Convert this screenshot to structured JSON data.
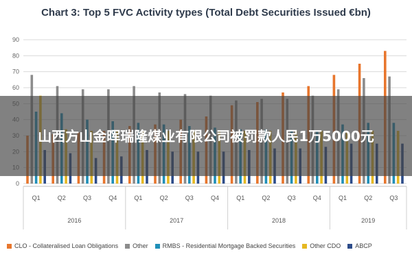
{
  "page": {
    "banner_text": "山西方山金晖瑞隆煤业有限公司被罚款人民1万5000元"
  },
  "chart_data": {
    "type": "bar",
    "title": "Chart 3: Top 5 FVC Activity types (Total Debt Securities Issued €bn)",
    "xlabel": "",
    "ylabel": "",
    "ylim": [
      0,
      90
    ],
    "yticks": [
      0,
      10,
      20,
      30,
      40,
      50,
      60,
      70,
      80,
      90
    ],
    "grid": true,
    "legend_position": "bottom",
    "categories": [
      "Q1",
      "Q2",
      "Q3",
      "Q4",
      "Q1",
      "Q2",
      "Q3",
      "Q4",
      "Q1",
      "Q2",
      "Q3",
      "Q4",
      "Q1",
      "Q2",
      "Q3"
    ],
    "groups": [
      {
        "label": "2016",
        "count": 4
      },
      {
        "label": "2017",
        "count": 4
      },
      {
        "label": "2018",
        "count": 4
      },
      {
        "label": "2019",
        "count": 3
      }
    ],
    "series": [
      {
        "name": "CLO - Collateralised Loan Obligations",
        "color": "#e8762d",
        "values": [
          30,
          31,
          32,
          33,
          36,
          37,
          40,
          42,
          49,
          51,
          57,
          61,
          68,
          75,
          83
        ]
      },
      {
        "name": "Other",
        "color": "#8c8c8c",
        "values": [
          68,
          61,
          59,
          59,
          61,
          57,
          56,
          55,
          52,
          53,
          53,
          55,
          59,
          66,
          67
        ]
      },
      {
        "name": "RMBS - Residential Mortgage Backed Securities",
        "color": "#1f8fb8",
        "values": [
          45,
          44,
          40,
          39,
          38,
          37,
          36,
          35,
          34,
          34,
          33,
          33,
          37,
          38,
          38
        ]
      },
      {
        "name": "Other CDO",
        "color": "#e6b822",
        "values": [
          55,
          34,
          33,
          33,
          33,
          33,
          33,
          33,
          33,
          33,
          33,
          33,
          33,
          33,
          33
        ]
      },
      {
        "name": "ABCP",
        "color": "#2d4c8a",
        "values": [
          21,
          19,
          16,
          17,
          21,
          20,
          20,
          20,
          21,
          22,
          22,
          23,
          25,
          25,
          25
        ]
      }
    ]
  }
}
